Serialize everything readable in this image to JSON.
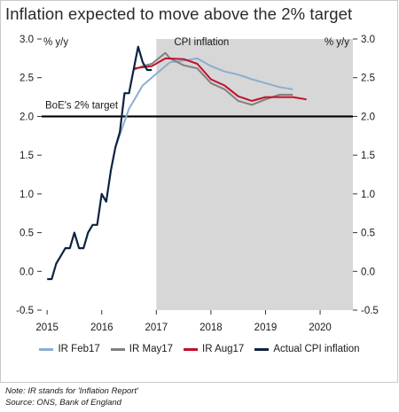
{
  "title": "Inflation expected to move above the 2% target",
  "chart_data": {
    "type": "line",
    "x_range": [
      2014.9,
      2020.6
    ],
    "xticks": [
      "2015",
      "2016",
      "2017",
      "2018",
      "2019",
      "2020"
    ],
    "ylim": [
      -0.5,
      3.0
    ],
    "yticks": [
      "3.0",
      "2.5",
      "2.0",
      "1.5",
      "1.0",
      "0.5",
      "0.0",
      "-0.5"
    ],
    "y_unit_label_left": "% y/y",
    "y_unit_label_right": "% y/y",
    "shaded_region": {
      "from": 2017.0,
      "to": 2020.6,
      "label": "CPI inflation",
      "color": "#d7d7d7"
    },
    "reference_line": {
      "y": 2.0,
      "label": "BoE's 2% target",
      "color": "#000000"
    },
    "series": [
      {
        "name": "Actual CPI inflation",
        "color": "#0c2340",
        "points": [
          [
            2015.0,
            -0.1
          ],
          [
            2015.083,
            -0.1
          ],
          [
            2015.167,
            0.1
          ],
          [
            2015.25,
            0.2
          ],
          [
            2015.333,
            0.3
          ],
          [
            2015.417,
            0.3
          ],
          [
            2015.5,
            0.5
          ],
          [
            2015.583,
            0.3
          ],
          [
            2015.667,
            0.3
          ],
          [
            2015.75,
            0.5
          ],
          [
            2015.833,
            0.6
          ],
          [
            2015.917,
            0.6
          ],
          [
            2016.0,
            1.0
          ],
          [
            2016.083,
            0.9
          ],
          [
            2016.167,
            1.3
          ],
          [
            2016.25,
            1.6
          ],
          [
            2016.333,
            1.8
          ],
          [
            2016.417,
            2.3
          ],
          [
            2016.5,
            2.3
          ],
          [
            2016.583,
            2.6
          ],
          [
            2016.667,
            2.9
          ],
          [
            2016.75,
            2.7
          ],
          [
            2016.833,
            2.6
          ],
          [
            2016.917,
            2.6
          ]
        ]
      },
      {
        "name": "IR Feb17",
        "color": "#8aaed0",
        "points": [
          [
            2016.25,
            1.6
          ],
          [
            2016.5,
            2.1
          ],
          [
            2016.75,
            2.4
          ],
          [
            2017.0,
            2.55
          ],
          [
            2017.25,
            2.7
          ],
          [
            2017.5,
            2.72
          ],
          [
            2017.75,
            2.75
          ],
          [
            2018.0,
            2.65
          ],
          [
            2018.25,
            2.58
          ],
          [
            2018.5,
            2.54
          ],
          [
            2018.75,
            2.48
          ],
          [
            2019.0,
            2.43
          ],
          [
            2019.25,
            2.38
          ],
          [
            2019.5,
            2.35
          ]
        ]
      },
      {
        "name": "IR May17",
        "color": "#808080",
        "points": [
          [
            2016.583,
            2.6
          ],
          [
            2016.75,
            2.65
          ],
          [
            2016.917,
            2.68
          ],
          [
            2017.167,
            2.82
          ],
          [
            2017.25,
            2.75
          ],
          [
            2017.5,
            2.66
          ],
          [
            2017.75,
            2.62
          ],
          [
            2018.0,
            2.43
          ],
          [
            2018.25,
            2.35
          ],
          [
            2018.5,
            2.2
          ],
          [
            2018.75,
            2.15
          ],
          [
            2019.0,
            2.22
          ],
          [
            2019.25,
            2.28
          ],
          [
            2019.5,
            2.28
          ]
        ]
      },
      {
        "name": "IR Aug17",
        "color": "#c0102a",
        "points": [
          [
            2016.583,
            2.62
          ],
          [
            2016.917,
            2.65
          ],
          [
            2017.167,
            2.75
          ],
          [
            2017.5,
            2.74
          ],
          [
            2017.75,
            2.68
          ],
          [
            2018.0,
            2.48
          ],
          [
            2018.25,
            2.4
          ],
          [
            2018.5,
            2.26
          ],
          [
            2018.75,
            2.2
          ],
          [
            2019.0,
            2.25
          ],
          [
            2019.25,
            2.25
          ],
          [
            2019.5,
            2.25
          ],
          [
            2019.75,
            2.22
          ]
        ]
      }
    ]
  },
  "legend": [
    {
      "label": "IR Feb17",
      "color": "#8aaed0"
    },
    {
      "label": "IR May17",
      "color": "#808080"
    },
    {
      "label": "IR Aug17",
      "color": "#c0102a"
    },
    {
      "label": "Actual CPI inflation",
      "color": "#0c2340"
    }
  ],
  "notes": {
    "note": "Note: IR stands for 'Inflation Report'",
    "source": "Source: ONS, Bank of England"
  }
}
